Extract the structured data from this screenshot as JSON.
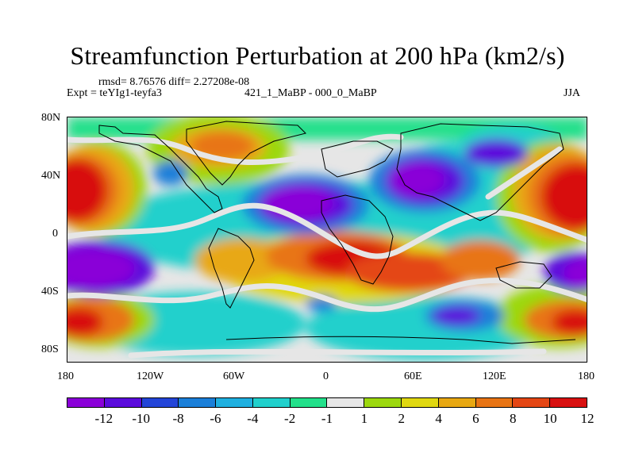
{
  "title": "Streamfunction Perturbation at 200 hPa (km2/s)",
  "header": {
    "rmsd_line": "rmsd= 8.76576 diff= 2.27208e-08",
    "expt": "Expt = teYIg1-teyfa3",
    "case": "421_1_MaBP - 000_0_MaBP",
    "season": "JJA"
  },
  "map": {
    "lat_labels": [
      "80N",
      "40N",
      "0",
      "40S",
      "80S"
    ],
    "lon_labels": [
      "180",
      "120W",
      "60W",
      "0",
      "60E",
      "120E",
      "180"
    ]
  },
  "colorbar": {
    "labels": [
      "-12",
      "-10",
      "-8",
      "-6",
      "-4",
      "-2",
      "-1",
      "1",
      "2",
      "4",
      "6",
      "8",
      "10",
      "12"
    ],
    "colors": [
      "#8a00d8",
      "#5b0bdc",
      "#2345d8",
      "#1a7fd9",
      "#1fb0e0",
      "#20d0cc",
      "#22e08a",
      "#e6e6e6",
      "#9cd80e",
      "#e0d810",
      "#e8a812",
      "#e87414",
      "#e44614",
      "#d81010"
    ]
  }
}
